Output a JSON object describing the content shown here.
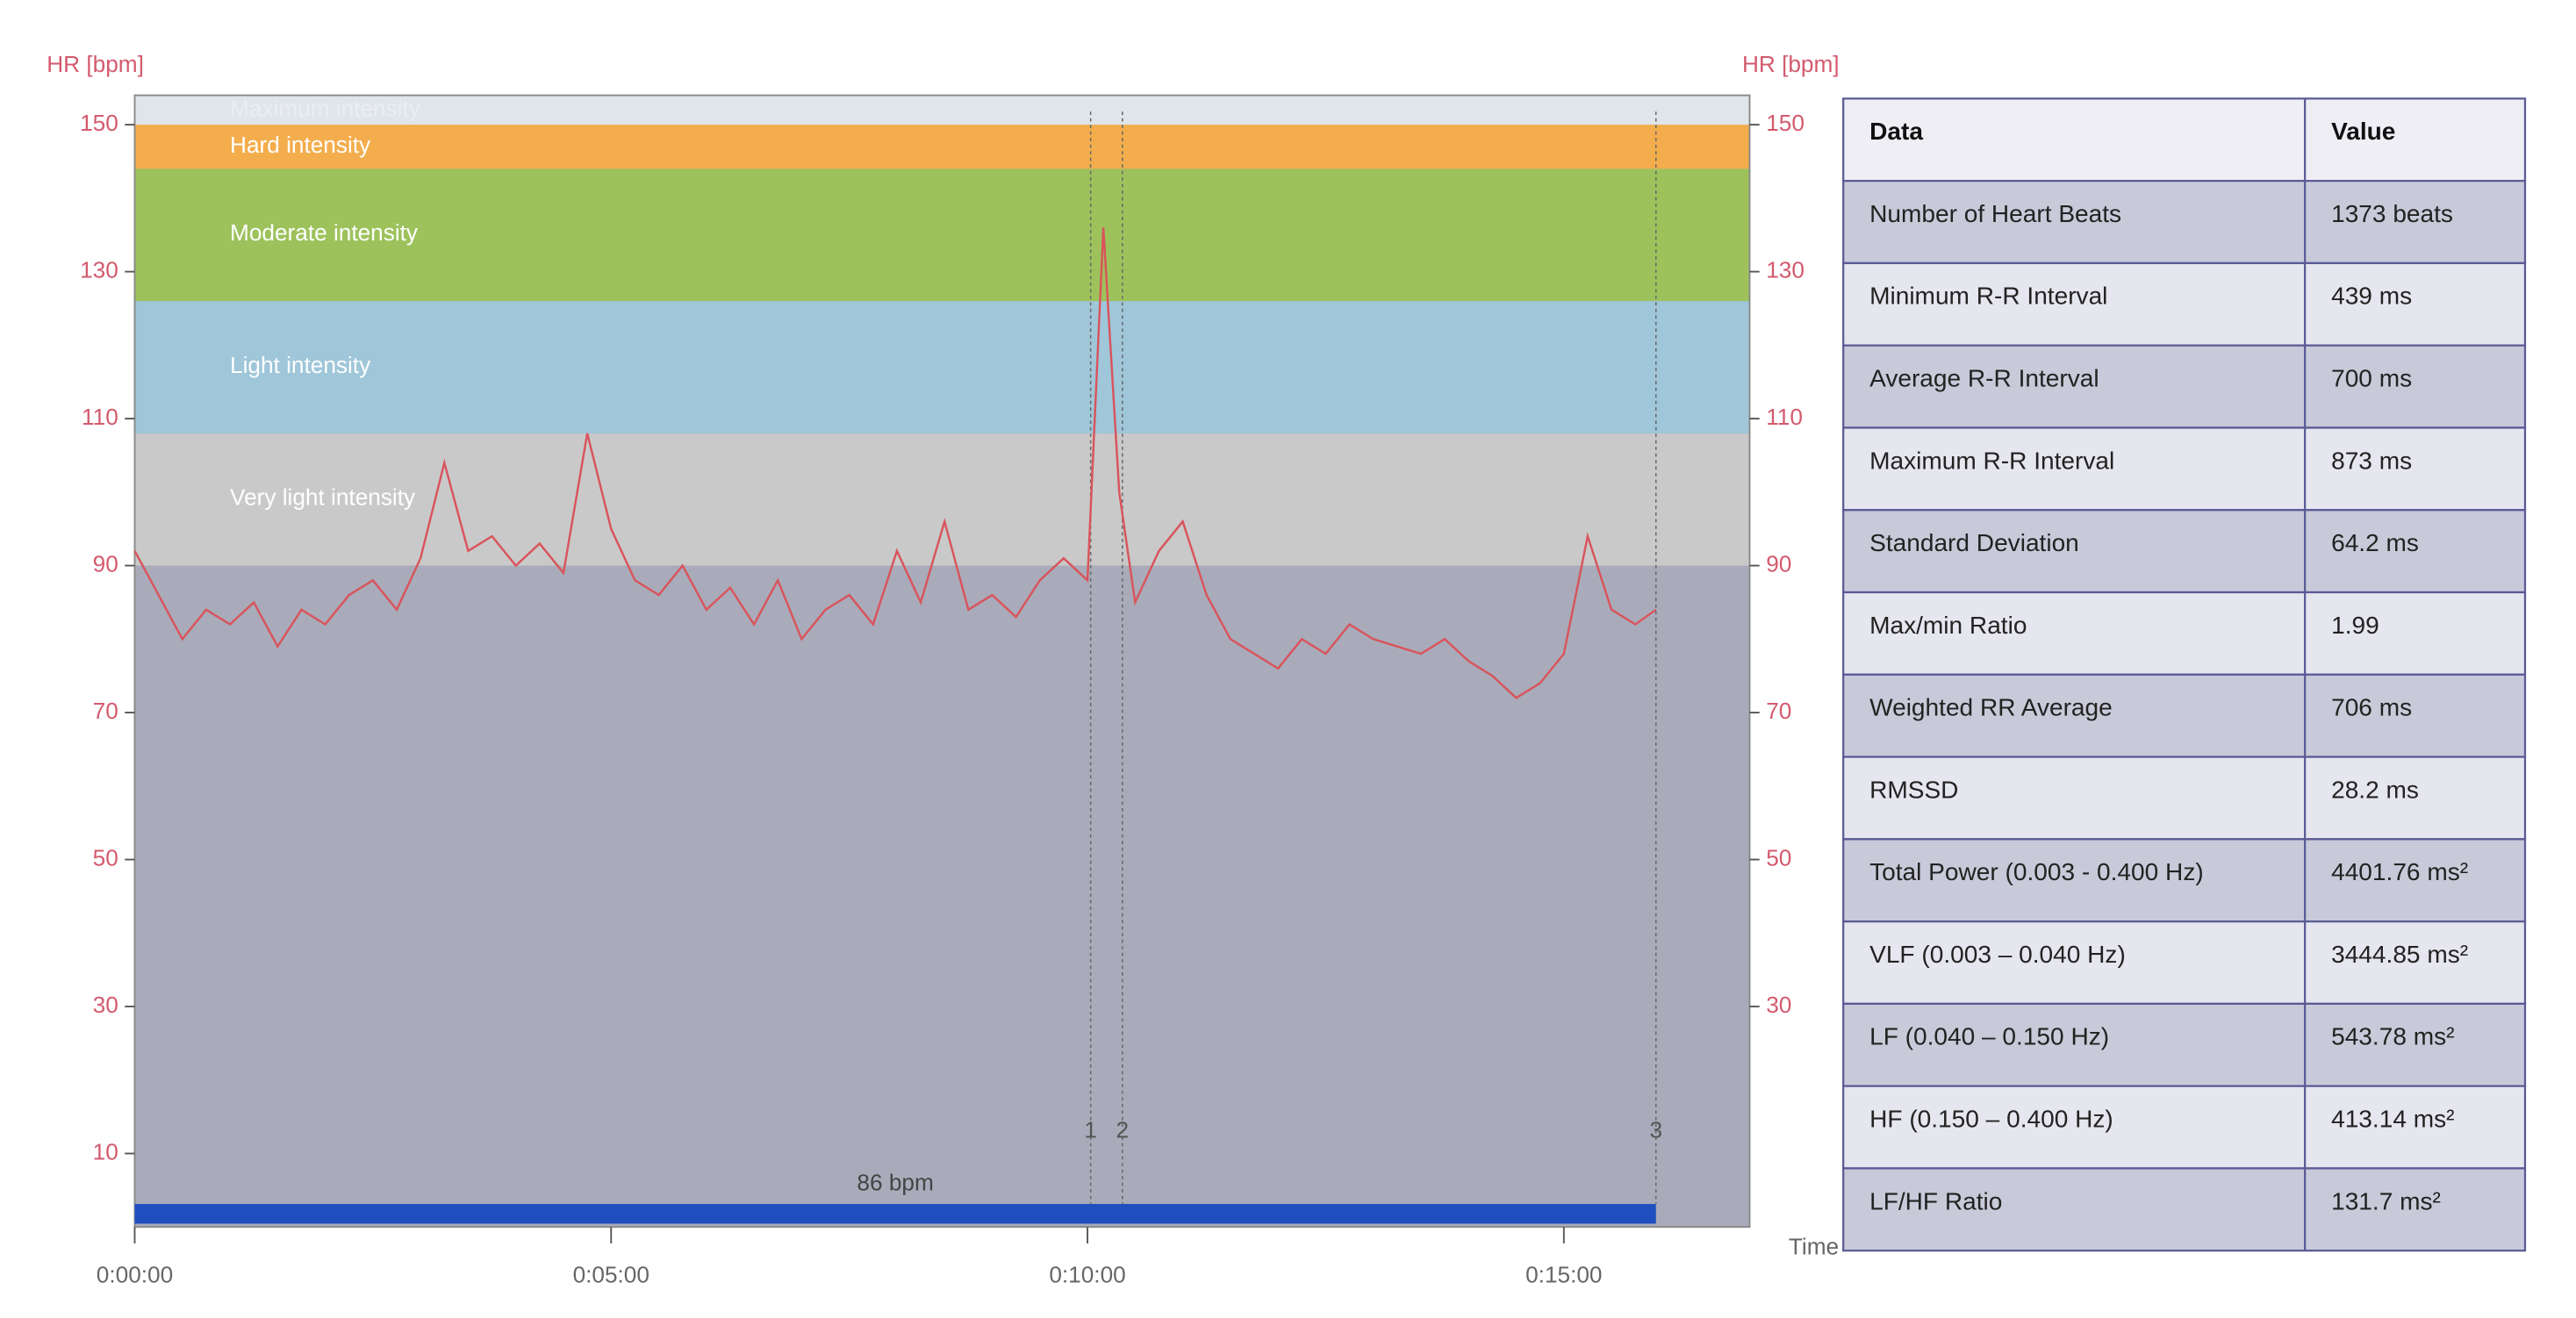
{
  "chart_data": {
    "type": "line",
    "y_label": "HR [bpm]",
    "y2_label": "HR [bpm]",
    "x_label": "Time",
    "xlim": [
      0,
      1017
    ],
    "ylim": [
      0,
      154
    ],
    "y2lim": [
      0,
      154
    ],
    "xticks": [
      {
        "value": 0,
        "label": "0:00:00"
      },
      {
        "value": 300,
        "label": "0:05:00"
      },
      {
        "value": 600,
        "label": "0:10:00"
      },
      {
        "value": 900,
        "label": "0:15:00"
      }
    ],
    "yticks": [
      10,
      30,
      50,
      70,
      90,
      110,
      130,
      150
    ],
    "y2ticks": [
      30,
      50,
      70,
      90,
      110,
      130,
      150
    ],
    "background": "#a9abba",
    "zones": [
      {
        "name": "Very light intensity",
        "range": [
          90,
          108
        ],
        "color": "#c9c9c9"
      },
      {
        "name": "Light intensity",
        "range": [
          108,
          126
        ],
        "color": "#9fc6d9"
      },
      {
        "name": "Moderate intensity",
        "range": [
          126,
          144
        ],
        "color": "#9dc25c"
      },
      {
        "name": "Hard intensity",
        "range": [
          144,
          150
        ],
        "color": "#f3ad4c"
      },
      {
        "name": "Maximum intensity",
        "range": [
          150,
          154
        ],
        "color": "#dfe5ea"
      }
    ],
    "markers": [
      {
        "x": 602,
        "label": "1"
      },
      {
        "x": 622,
        "label": "2"
      },
      {
        "x": 958,
        "label": "3"
      }
    ],
    "bar": {
      "x": [
        0,
        958
      ],
      "label": "86 bpm",
      "color": "#1f4fbf"
    },
    "x": [
      0,
      15,
      30,
      45,
      60,
      75,
      90,
      105,
      120,
      135,
      150,
      165,
      180,
      195,
      210,
      225,
      240,
      255,
      270,
      285,
      300,
      315,
      330,
      345,
      360,
      375,
      390,
      405,
      420,
      435,
      450,
      465,
      480,
      495,
      510,
      525,
      540,
      555,
      570,
      585,
      600,
      610,
      620,
      630,
      645,
      660,
      675,
      690,
      705,
      720,
      735,
      750,
      765,
      780,
      795,
      810,
      825,
      840,
      855,
      870,
      885,
      900,
      915,
      930,
      945,
      958
    ],
    "series": [
      {
        "name": "HR",
        "color": "#d9545c",
        "values": [
          92,
          86,
          80,
          84,
          82,
          85,
          79,
          84,
          82,
          86,
          88,
          84,
          91,
          104,
          92,
          94,
          90,
          93,
          89,
          108,
          95,
          88,
          86,
          90,
          84,
          87,
          82,
          88,
          80,
          84,
          86,
          82,
          92,
          85,
          96,
          84,
          86,
          83,
          88,
          91,
          88,
          136,
          100,
          85,
          92,
          96,
          86,
          80,
          78,
          76,
          80,
          78,
          82,
          80,
          79,
          78,
          80,
          77,
          75,
          72,
          74,
          78,
          94,
          84,
          82,
          84
        ]
      }
    ]
  },
  "table": {
    "header": [
      "Data",
      "Value"
    ],
    "rows": [
      [
        "Number of Heart Beats",
        "1373 beats"
      ],
      [
        "Minimum  R-R Interval",
        "439 ms"
      ],
      [
        "Average R-R Interval",
        "700 ms"
      ],
      [
        "Maximum  R-R Interval",
        "873 ms"
      ],
      [
        "Standard Deviation",
        "64.2 ms"
      ],
      [
        "Max/min Ratio",
        "1.99"
      ],
      [
        "Weighted RR  Average",
        "706 ms"
      ],
      [
        "RMSSD",
        "28.2 ms"
      ],
      [
        "Total Power (0.003 - 0.400 Hz)",
        "4401.76 ms²"
      ],
      [
        "VLF (0.003 – 0.040 Hz)",
        "3444.85 ms²"
      ],
      [
        "LF (0.040 – 0.150 Hz)",
        "543.78 ms²"
      ],
      [
        "HF  (0.150 – 0.400 Hz)",
        "413.14 ms²"
      ],
      [
        "LF/HF  Ratio",
        "131.7 ms²"
      ]
    ]
  }
}
